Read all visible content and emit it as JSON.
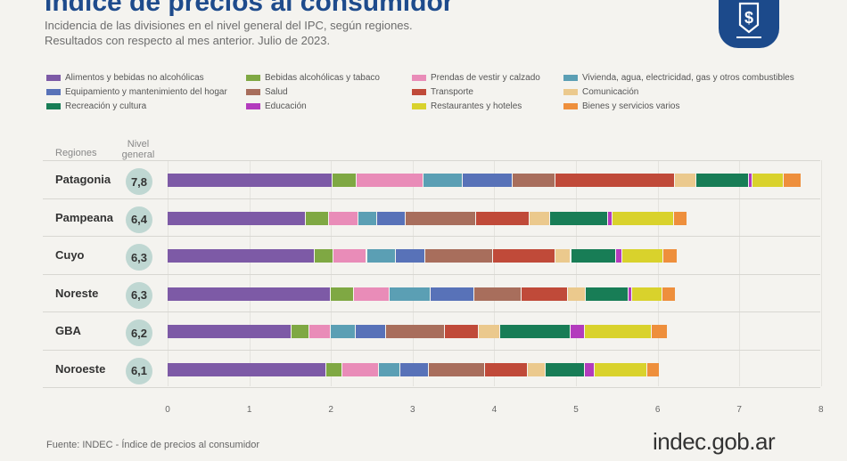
{
  "header": {
    "title": "Índice de precios al consumidor",
    "subtitle_1": "Incidencia de las divisiones en el nivel general del IPC, según regiones.",
    "subtitle_2": "Resultados con respecto al mes anterior. Julio de 2023."
  },
  "table_headers": {
    "regiones": "Regiones",
    "nivel_1": "Nivel",
    "nivel_2": "general"
  },
  "footer": {
    "source": "Fuente: INDEC - Índice de precios al consumidor",
    "brand": "indec.gob.ar"
  },
  "chart_data": {
    "type": "bar",
    "orientation": "horizontal",
    "stacked": true,
    "categories": [
      "Patagonia",
      "Pampeana",
      "Cuyo",
      "Noreste",
      "GBA",
      "Noroeste"
    ],
    "nivel_general": [
      "7,8",
      "6,4",
      "6,3",
      "6,3",
      "6,2",
      "6,1"
    ],
    "xlim": [
      0,
      8
    ],
    "xticks": [
      "0",
      "1",
      "2",
      "3",
      "4",
      "5",
      "6",
      "7",
      "8"
    ],
    "grid": false,
    "legend_position": "top",
    "series": [
      {
        "name": "Alimentos y bebidas no alcohólicas",
        "color": "#7d5aa6",
        "values": [
          2.02,
          1.69,
          1.8,
          2.0,
          1.52,
          1.94
        ]
      },
      {
        "name": "Bebidas alcohólicas y tabaco",
        "color": "#7fa843",
        "values": [
          0.29,
          0.29,
          0.23,
          0.28,
          0.22,
          0.2
        ]
      },
      {
        "name": "Prendas de vestir y calzado",
        "color": "#e98cb8",
        "values": [
          0.82,
          0.36,
          0.41,
          0.44,
          0.26,
          0.45
        ]
      },
      {
        "name": "Vivienda, agua, electricidad, gas y otros combustibles",
        "color": "#5b9fb4",
        "values": [
          0.48,
          0.23,
          0.35,
          0.5,
          0.3,
          0.26
        ]
      },
      {
        "name": "Equipamiento y mantenimiento del hogar",
        "color": "#5872b8",
        "values": [
          0.62,
          0.35,
          0.36,
          0.54,
          0.37,
          0.35
        ]
      },
      {
        "name": "Salud",
        "color": "#a86e5c",
        "values": [
          0.52,
          0.86,
          0.84,
          0.57,
          0.73,
          0.69
        ]
      },
      {
        "name": "Transporte",
        "color": "#c04a39",
        "values": [
          1.46,
          0.65,
          0.76,
          0.57,
          0.41,
          0.52
        ]
      },
      {
        "name": "Comunicación",
        "color": "#ebc98d",
        "values": [
          0.26,
          0.25,
          0.19,
          0.22,
          0.26,
          0.22
        ]
      },
      {
        "name": "Recreación y cultura",
        "color": "#187d56",
        "values": [
          0.65,
          0.71,
          0.55,
          0.52,
          0.86,
          0.48
        ]
      },
      {
        "name": "Educación",
        "color": "#b33bbd",
        "values": [
          0.04,
          0.06,
          0.08,
          0.05,
          0.18,
          0.12
        ]
      },
      {
        "name": "Restaurantes y hoteles",
        "color": "#d9d22c",
        "values": [
          0.38,
          0.75,
          0.5,
          0.37,
          0.82,
          0.64
        ]
      },
      {
        "name": "Bienes y servicios varios",
        "color": "#ee8f3c",
        "values": [
          0.22,
          0.17,
          0.17,
          0.16,
          0.19,
          0.16
        ]
      }
    ]
  }
}
